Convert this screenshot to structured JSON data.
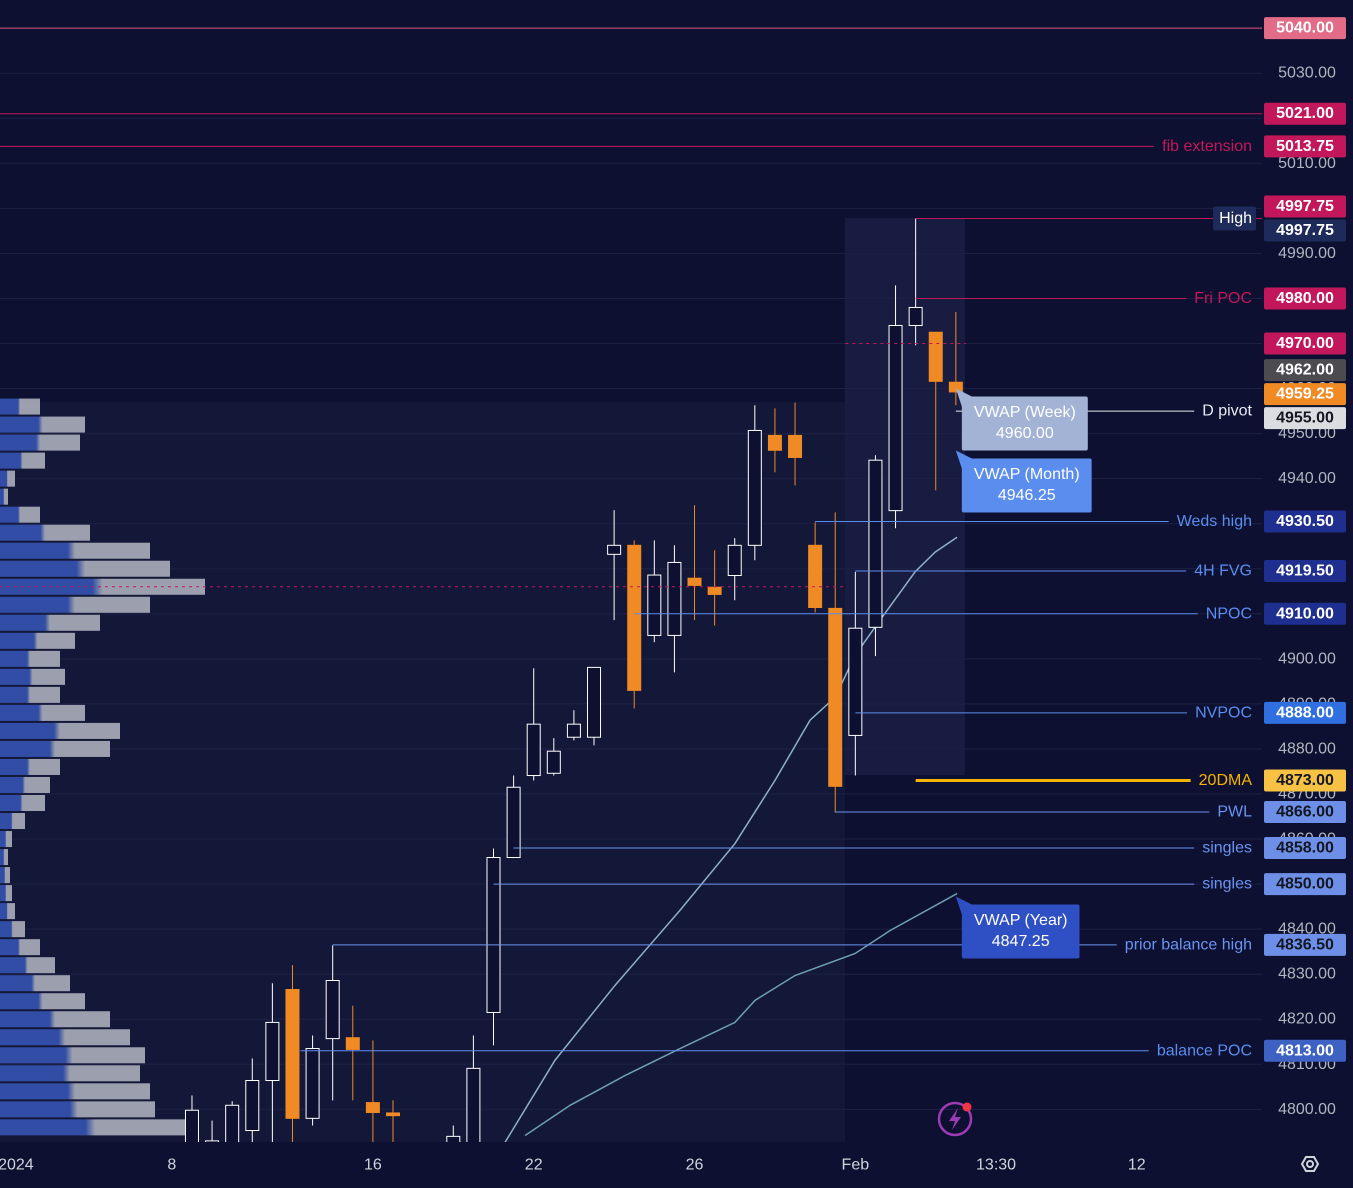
{
  "chart_data": {
    "type": "candlestick",
    "xlim": [
      -9.55,
      53.23
    ],
    "ylim": [
      4792.75,
      5046.25
    ],
    "xticks": [
      {
        "value": -8.76,
        "label": "2024"
      },
      {
        "value": -1,
        "label": "8"
      },
      {
        "value": 9,
        "label": "16"
      },
      {
        "value": 17,
        "label": "22"
      },
      {
        "value": 25,
        "label": "26"
      },
      {
        "value": 33,
        "label": "Feb"
      },
      {
        "value": 40,
        "label": "13:30"
      },
      {
        "value": 47,
        "label": "12"
      }
    ],
    "yticks": [
      {
        "value": 4800,
        "label": "4800.00"
      },
      {
        "value": 4810,
        "label": "4810.00"
      },
      {
        "value": 4820,
        "label": "4820.00"
      },
      {
        "value": 4830,
        "label": "4830.00"
      },
      {
        "value": 4840,
        "label": "4840.00"
      },
      {
        "value": 4850,
        "label": "4850.00"
      },
      {
        "value": 4860,
        "label": "4860.00"
      },
      {
        "value": 4870,
        "label": "4870.00"
      },
      {
        "value": 4880,
        "label": "4880.00"
      },
      {
        "value": 4890,
        "label": "4890.00"
      },
      {
        "value": 4900,
        "label": "4900.00"
      },
      {
        "value": 4910,
        "label": "4910.00"
      },
      {
        "value": 4920,
        "label": "4920.00"
      },
      {
        "value": 4930,
        "label": "4930.00"
      },
      {
        "value": 4940,
        "label": "4940.00"
      },
      {
        "value": 4950,
        "label": "4950.00"
      },
      {
        "value": 4960,
        "label": "4960.00"
      },
      {
        "value": 4970,
        "label": "4970.00"
      },
      {
        "value": 4980,
        "label": "4980.00"
      },
      {
        "value": 4990,
        "label": "4990.00"
      },
      {
        "value": 5000,
        "label": "5000.00"
      },
      {
        "value": 5010,
        "label": "5010.00"
      },
      {
        "value": 5020,
        "label": "5020.00"
      },
      {
        "value": 5030,
        "label": "5030.00"
      },
      {
        "value": 5040,
        "label": "5040.00"
      }
    ],
    "grid": true,
    "up_color": "#ffffff",
    "down_color": "#f08a24",
    "x": [
      0,
      1,
      2,
      3,
      4,
      5,
      6,
      7,
      8,
      9,
      10,
      13,
      14,
      15,
      16,
      17,
      18,
      19,
      20,
      21,
      22,
      23,
      24,
      25,
      26,
      27,
      28,
      29,
      30,
      31,
      32,
      33,
      34,
      35,
      36,
      37,
      38
    ],
    "open": [
      4790,
      4788,
      4790,
      4795.3,
      4806.4,
      4826.6,
      4798,
      4815.7,
      4815.9,
      4801.5,
      4799.2,
      4792,
      4790,
      4821.5,
      4855.9,
      4874.1,
      4874.6,
      4882.6,
      4882.6,
      4923.2,
      4925.2,
      4905.2,
      4905.2,
      4917.9,
      4915.9,
      4918.5,
      4925.2,
      4949.6,
      4949.6,
      4925.2,
      4911.2,
      4883,
      4907,
      4932.9,
      4974,
      4972.5,
      4961.4
    ],
    "high": [
      4803.1,
      4797.5,
      4801.8,
      4811.3,
      4828,
      4832,
      4816.4,
      4836.4,
      4823,
      4815.3,
      4802,
      4796.4,
      4816.4,
      4857.9,
      4874.1,
      4897.9,
      4882.4,
      4888.6,
      4898.1,
      4933,
      4926.3,
      4926.3,
      4925.2,
      4934.1,
      4924.1,
      4926.8,
      4956.3,
      4955.6,
      4956.9,
      4930.3,
      4932.5,
      4919.3,
      4945.2,
      4982.9,
      4997.75,
      4972.5,
      4977
    ],
    "low": [
      4786,
      4785,
      4786,
      4790,
      4790,
      4790,
      4796.4,
      4802,
      4802,
      4790,
      4790,
      4788,
      4788,
      4814.2,
      4855.9,
      4873,
      4874.1,
      4881.9,
      4880.8,
      4908.6,
      4889,
      4903.7,
      4897,
      4908.6,
      4907.4,
      4913,
      4921.9,
      4941.4,
      4938.5,
      4910.3,
      4865.9,
      4874.1,
      4900.6,
      4929,
      4969.6,
      4937.4,
      4956.3
    ],
    "close": [
      4799.8,
      4793,
      4800.9,
      4806.4,
      4819.3,
      4798,
      4813.5,
      4828.6,
      4813.3,
      4799.3,
      4798.6,
      4794,
      4809.1,
      4855.9,
      4871.5,
      4885.5,
      4879.5,
      4885.5,
      4898.1,
      4925.2,
      4893,
      4918.6,
      4921.4,
      4916.3,
      4914.3,
      4925.2,
      4950.7,
      4946.3,
      4944.7,
      4911.4,
      4871.7,
      4906.8,
      4944.1,
      4974,
      4978,
      4961.6,
      4959.25
    ],
    "profile": {
      "colors": [
        "#3656b8",
        "#b4b7c2"
      ],
      "prices": [
        4956,
        4952,
        4948,
        4944,
        4940,
        4936,
        4932,
        4928,
        4924,
        4920,
        4916,
        4912,
        4908,
        4904,
        4900,
        4896,
        4892,
        4888,
        4884,
        4880,
        4876,
        4872,
        4868,
        4864,
        4860,
        4856,
        4852,
        4848,
        4844,
        4840,
        4836,
        4832,
        4828,
        4824,
        4820,
        4816,
        4812,
        4808,
        4804,
        4800,
        4796
      ],
      "values": [
        40,
        85,
        80,
        45,
        15,
        8,
        40,
        90,
        150,
        170,
        205,
        150,
        100,
        75,
        60,
        65,
        60,
        85,
        120,
        110,
        60,
        50,
        45,
        25,
        12,
        8,
        10,
        12,
        15,
        25,
        40,
        55,
        70,
        85,
        110,
        130,
        145,
        140,
        150,
        155,
        190
      ]
    },
    "lines": [
      {
        "color": "#8fb0c8",
        "x": [
          15.57,
          18.06,
          21.04,
          24.28,
          27.01,
          29.0,
          30.75,
          32.0,
          32.99,
          34.23,
          35.97,
          36.97,
          38.06
        ],
        "values": [
          4792.65,
          4810.9,
          4827.5,
          4844.2,
          4859.0,
          4873.0,
          4886.4,
          4891.5,
          4900.8,
          4908.6,
          4919.3,
          4923.7,
          4927.0
        ]
      },
      {
        "color": "#6f9fb2",
        "x": [
          16.57,
          18.81,
          21.54,
          24.28,
          27.01,
          28.01,
          30.0,
          32.99,
          34.73,
          38.06
        ],
        "values": [
          4794.2,
          4800.9,
          4807.5,
          4813.5,
          4819.3,
          4824.2,
          4829.7,
          4834.6,
          4839.7,
          4847.9
        ]
      }
    ],
    "levels": [
      {
        "value": 5040,
        "value_label": "5040.00",
        "color": "#d9557a",
        "tag_color": "#e26c87",
        "tag_text": "#ffffff",
        "start": -9.55
      },
      {
        "value": 5021,
        "value_label": "5021.00",
        "color": "#c2185b",
        "tag_color": "#c2185b",
        "tag_text": "#ffffff",
        "start": -9.55
      },
      {
        "label": "fib extension",
        "value": 5013.75,
        "value_label": "5013.75",
        "color": "#c2185b",
        "tag_color": "#c2185b",
        "tag_text": "#ffffff",
        "start": -9.55
      },
      {
        "value": 4997.75,
        "value_label": "4997.75",
        "color": "#c2185b",
        "tag_color": "#c2185b",
        "tag_text": "#ffffff",
        "start": 36
      },
      {
        "label": "High",
        "value": 4997.75,
        "value_label": "4997.75",
        "color": "#ffffff",
        "label_bg": "#1e2a5a",
        "tag_color": "#1e2a5a",
        "tag_text": "#ffffff"
      },
      {
        "label": "Fri POC",
        "value": 4980,
        "value_label": "4980.00",
        "color": "#c2185b",
        "tag_color": "#c2185b",
        "tag_text": "#ffffff",
        "start": 36
      },
      {
        "value": 4970,
        "value_label": "4970.00",
        "color": "#c2185b",
        "tag_color": "#c2185b",
        "tag_text": "#ffffff",
        "start": 32.5,
        "end": 38.5,
        "dash": true
      },
      {
        "value": 4962,
        "value_label": "4962.00",
        "tag_color": "#4b4b50",
        "tag_text": "#ffffff"
      },
      {
        "value": 4959.25,
        "value_label": "4959.25",
        "tag_color": "#f08a24",
        "tag_text": "#ffffff"
      },
      {
        "label": "D pivot",
        "value": 4955,
        "value_label": "4955.00",
        "color": "#e8eaf0",
        "tag_color": "#dcdde0",
        "tag_text": "#131722",
        "start": 38
      },
      {
        "label": "Weds high",
        "value": 4930.5,
        "value_label": "4930.50",
        "color": "#5b8def",
        "tag_color": "#1f2f8f",
        "tag_text": "#ffffff",
        "start": 31
      },
      {
        "label": "4H FVG",
        "value": 4919.5,
        "value_label": "4919.50",
        "color": "#5b8def",
        "tag_color": "#1f2f8f",
        "tag_text": "#ffffff",
        "start": 33
      },
      {
        "label": "NPOC",
        "value": 4910,
        "value_label": "4910.00",
        "color": "#5b8def",
        "tag_color": "#1f2f8f",
        "tag_text": "#ffffff",
        "start": 22
      },
      {
        "value": 4916,
        "color": "#c2185b",
        "start": -9.55,
        "end": 32.6,
        "dash": true
      },
      {
        "label": "NVPOC",
        "value": 4888,
        "value_label": "4888.00",
        "color": "#5b8def",
        "tag_color": "#2f6fe0",
        "tag_text": "#ffffff",
        "start": 33
      },
      {
        "label": "20DMA",
        "value": 4873,
        "value_label": "4873.00",
        "color": "#f4b400",
        "width": 3,
        "tag_color": "#f7c244",
        "tag_text": "#131722",
        "start": 36
      },
      {
        "label": "PWL",
        "value": 4866,
        "value_label": "4866.00",
        "color": "#6b93f0",
        "tag_color": "#6e8fe8",
        "tag_text": "#131722",
        "start": 32
      },
      {
        "label": "singles",
        "value": 4858,
        "value_label": "4858.00",
        "color": "#6b93f0",
        "tag_color": "#6e8fe8",
        "tag_text": "#131722",
        "start": 16
      },
      {
        "label": "singles",
        "value": 4850,
        "value_label": "4850.00",
        "color": "#6b93f0",
        "tag_color": "#6e8fe8",
        "tag_text": "#131722",
        "start": 15
      },
      {
        "label": "prior balance high",
        "value": 4836.5,
        "value_label": "4836.50",
        "color": "#6b93f0",
        "tag_color": "#6e8fe8",
        "tag_text": "#131722",
        "start": 7
      },
      {
        "label": "balance POC",
        "value": 4813,
        "value_label": "4813.00",
        "color": "#5b8def",
        "tag_color": "#3d62c4",
        "tag_text": "#ffffff",
        "start": 5.4
      }
    ],
    "annotations": [
      {
        "text": "VWAP (Week)",
        "value": 4960,
        "value_label": "4960.00",
        "x": 38,
        "color": "#a3b3d6"
      },
      {
        "text": "VWAP (Month)",
        "value": 4946.25,
        "value_label": "4946.25",
        "x": 38,
        "color": "#5b8def"
      },
      {
        "text": "VWAP (Year)",
        "value": 4847.25,
        "value_label": "4847.25",
        "x": 38,
        "color": "#2f4fc4"
      }
    ]
  }
}
